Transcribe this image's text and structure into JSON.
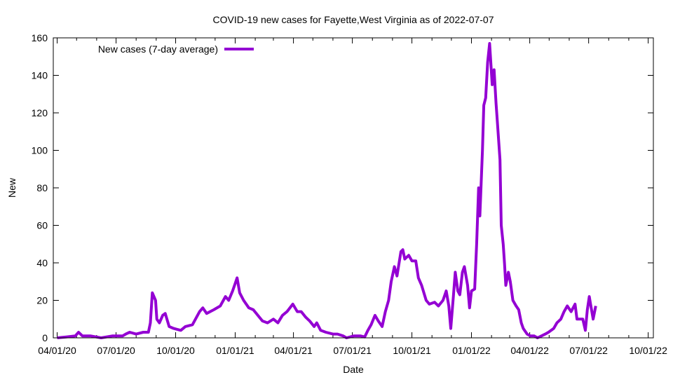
{
  "chart_data": {
    "type": "line",
    "title": "COVID-19 new cases for Fayette,West Virginia as of 2022-07-07",
    "xlabel": "Date",
    "ylabel": "New",
    "x_units": "days since 04/01/20",
    "xlim": [
      -6,
      921
    ],
    "ylim": [
      0,
      160
    ],
    "yticks": [
      0,
      20,
      40,
      60,
      80,
      100,
      120,
      140,
      160
    ],
    "xticks": [
      {
        "day": 0,
        "label": "04/01/20"
      },
      {
        "day": 91,
        "label": "07/01/20"
      },
      {
        "day": 183,
        "label": "10/01/20"
      },
      {
        "day": 275,
        "label": "01/01/21"
      },
      {
        "day": 365,
        "label": "04/01/21"
      },
      {
        "day": 456,
        "label": "07/01/21"
      },
      {
        "day": 548,
        "label": "10/01/21"
      },
      {
        "day": 640,
        "label": "01/01/22"
      },
      {
        "day": 730,
        "label": "04/01/22"
      },
      {
        "day": 821,
        "label": "07/01/22"
      },
      {
        "day": 913,
        "label": "10/01/22"
      }
    ],
    "minor_xticks": [
      30,
      61,
      122,
      153,
      214,
      244,
      306,
      334,
      395,
      426,
      487,
      518,
      579,
      609,
      671,
      699,
      760,
      791,
      852,
      883
    ],
    "grid": false,
    "legend_position": "top-left",
    "color": "#9400d3",
    "series": [
      {
        "name": "New cases (7-day average)",
        "x": [
          0,
          14,
          28,
          33,
          39,
          52,
          68,
          85,
          101,
          106,
          112,
          122,
          133,
          141,
          144,
          147,
          152,
          154,
          158,
          163,
          167,
          173,
          180,
          191,
          198,
          209,
          220,
          225,
          231,
          242,
          252,
          260,
          265,
          271,
          275,
          278,
          282,
          288,
          296,
          303,
          310,
          317,
          325,
          334,
          341,
          348,
          355,
          364,
          371,
          377,
          384,
          390,
          397,
          401,
          407,
          415,
          426,
          433,
          442,
          447,
          458,
          469,
          475,
          480,
          485,
          491,
          496,
          502,
          507,
          512,
          516,
          521,
          525,
          531,
          534,
          537,
          543,
          548,
          554,
          558,
          563,
          570,
          575,
          583,
          589,
          596,
          601,
          605,
          608,
          612,
          615,
          619,
          622,
          626,
          629,
          634,
          637,
          640,
          645,
          648,
          651,
          653,
          657,
          659,
          662,
          665,
          668,
          672,
          675,
          678,
          680,
          684,
          686,
          689,
          691,
          693,
          697,
          700,
          704,
          709,
          713,
          717,
          720,
          726,
          731,
          737,
          742,
          748,
          754,
          759,
          767,
          772,
          778,
          783,
          788,
          794,
          800,
          803,
          808,
          812,
          816,
          819,
          822,
          824,
          828,
          832
        ],
        "values": [
          0,
          0.5,
          1,
          3,
          1,
          1,
          0,
          1,
          1,
          2,
          3,
          2,
          3,
          3,
          8,
          24,
          20,
          10,
          8,
          12,
          13,
          6,
          5,
          4,
          6,
          7,
          14,
          16,
          13,
          15,
          17,
          22,
          20,
          25,
          29,
          32,
          24,
          20,
          16,
          15,
          12,
          9,
          8,
          10,
          8,
          12,
          14,
          18,
          14,
          14,
          11,
          9,
          6,
          8,
          4,
          3,
          2,
          2,
          1,
          0,
          1,
          1,
          0.5,
          4,
          7,
          12,
          9,
          6,
          14,
          20,
          30,
          38,
          33,
          46,
          47,
          42,
          44,
          41,
          41,
          32,
          28,
          20,
          18,
          19,
          17,
          20,
          25,
          17,
          5,
          22,
          35,
          25,
          23,
          35,
          38,
          28,
          16,
          25,
          26,
          50,
          80,
          65,
          100,
          124,
          128,
          147,
          157,
          135,
          143,
          125,
          115,
          95,
          60,
          50,
          40,
          28,
          35,
          30,
          20,
          17,
          15,
          8,
          5,
          2,
          1,
          1,
          0,
          1,
          2,
          3,
          5,
          8,
          10,
          14,
          17,
          14,
          18,
          10,
          10,
          10,
          4,
          15,
          22,
          18,
          10,
          17
        ]
      }
    ]
  }
}
